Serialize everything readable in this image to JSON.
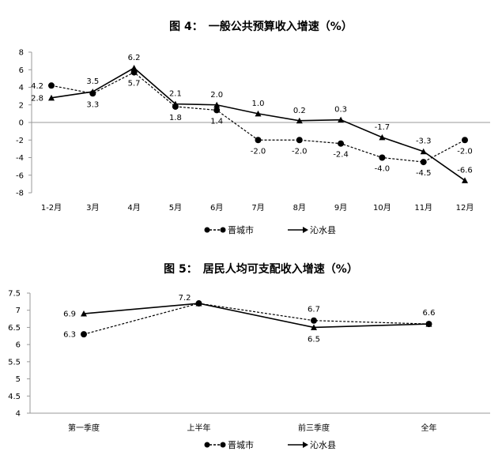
{
  "chart_data": [
    {
      "type": "line",
      "title": "图 4：　一般公共预算收入增速（%）",
      "categories": [
        "1-2月",
        "3月",
        "4月",
        "5月",
        "6月",
        "7月",
        "8月",
        "9月",
        "10月",
        "11月",
        "12月"
      ],
      "series": [
        {
          "name": "晋城市",
          "values": [
            4.2,
            3.3,
            5.7,
            1.8,
            1.4,
            -2.0,
            -2.0,
            -2.4,
            -4.0,
            -4.5,
            -2.0
          ],
          "color": "#000000",
          "line_style": "dashed",
          "marker": "circle"
        },
        {
          "name": "沁水县",
          "values": [
            2.8,
            3.5,
            6.2,
            2.1,
            2.0,
            1.0,
            0.2,
            0.3,
            -1.7,
            -3.3,
            -6.6
          ],
          "color": "#000000",
          "line_style": "solid",
          "marker": "triangle"
        }
      ],
      "data_labels": [
        {
          "text": "4.2",
          "series": 0,
          "index": 0,
          "place": "left"
        },
        {
          "text": "2.8",
          "series": 1,
          "index": 0,
          "place": "left"
        },
        {
          "text": "3.5",
          "series": 1,
          "index": 1,
          "place": "above"
        },
        {
          "text": "3.3",
          "series": 0,
          "index": 1,
          "place": "below"
        },
        {
          "text": "6.2",
          "series": 1,
          "index": 2,
          "place": "above"
        },
        {
          "text": "5.7",
          "series": 0,
          "index": 2,
          "place": "below"
        },
        {
          "text": "2.1",
          "series": 1,
          "index": 3,
          "place": "above"
        },
        {
          "text": "1.8",
          "series": 0,
          "index": 3,
          "place": "below"
        },
        {
          "text": "2.0",
          "series": 1,
          "index": 4,
          "place": "above"
        },
        {
          "text": "1.4",
          "series": 0,
          "index": 4,
          "place": "below"
        },
        {
          "text": "1.0",
          "series": 1,
          "index": 5,
          "place": "above"
        },
        {
          "text": "-2.0",
          "series": 0,
          "index": 5,
          "place": "below"
        },
        {
          "text": "0.2",
          "series": 1,
          "index": 6,
          "place": "above"
        },
        {
          "text": "-2.0",
          "series": 0,
          "index": 6,
          "place": "below"
        },
        {
          "text": "0.3",
          "series": 1,
          "index": 7,
          "place": "above"
        },
        {
          "text": "-2.4",
          "series": 0,
          "index": 7,
          "place": "below"
        },
        {
          "text": "-1.7",
          "series": 1,
          "index": 8,
          "place": "above"
        },
        {
          "text": "-4.0",
          "series": 0,
          "index": 8,
          "place": "below"
        },
        {
          "text": "-3.3",
          "series": 1,
          "index": 9,
          "place": "above"
        },
        {
          "text": "-4.5",
          "series": 0,
          "index": 9,
          "place": "below"
        },
        {
          "text": "-2.0",
          "series": 0,
          "index": 10,
          "place": "below"
        },
        {
          "text": "-6.6",
          "series": 1,
          "index": 10,
          "place": "above"
        }
      ],
      "ylim": [
        -8,
        8
      ],
      "yticks": [
        "8",
        "6",
        "4",
        "2",
        "0",
        "-2",
        "-4",
        "-6",
        "-8"
      ],
      "ytick_values": [
        8,
        6,
        4,
        2,
        0,
        -2,
        -4,
        -6,
        -8
      ],
      "grid": false,
      "legend": "bottom-center"
    },
    {
      "type": "line",
      "title": "图 5：　居民人均可支配收入增速（%）",
      "categories": [
        "第一季度",
        "上半年",
        "前三季度",
        "全年"
      ],
      "series": [
        {
          "name": "晋城市",
          "values": [
            6.3,
            7.2,
            6.7,
            6.6
          ],
          "color": "#000000",
          "line_style": "dashed",
          "marker": "circle"
        },
        {
          "name": "沁水县",
          "values": [
            6.9,
            7.2,
            6.5,
            6.6
          ],
          "color": "#000000",
          "line_style": "solid",
          "marker": "triangle"
        }
      ],
      "data_labels": [
        {
          "text": "6.9",
          "series": 1,
          "index": 0,
          "place": "left"
        },
        {
          "text": "6.3",
          "series": 0,
          "index": 0,
          "place": "left"
        },
        {
          "text": "7.2",
          "series": 0,
          "index": 1,
          "place": "above-left"
        },
        {
          "text": "6.7",
          "series": 0,
          "index": 2,
          "place": "above"
        },
        {
          "text": "6.5",
          "series": 1,
          "index": 2,
          "place": "below"
        },
        {
          "text": "6.6",
          "series": 0,
          "index": 3,
          "place": "above"
        }
      ],
      "ylim": [
        4,
        7.5
      ],
      "yticks": [
        "7.5",
        "7",
        "6.5",
        "6",
        "5.5",
        "5",
        "4.5",
        "4"
      ],
      "ytick_values": [
        7.5,
        7,
        6.5,
        6,
        5.5,
        5,
        4.5,
        4
      ],
      "grid": false,
      "legend": "bottom-center"
    }
  ]
}
